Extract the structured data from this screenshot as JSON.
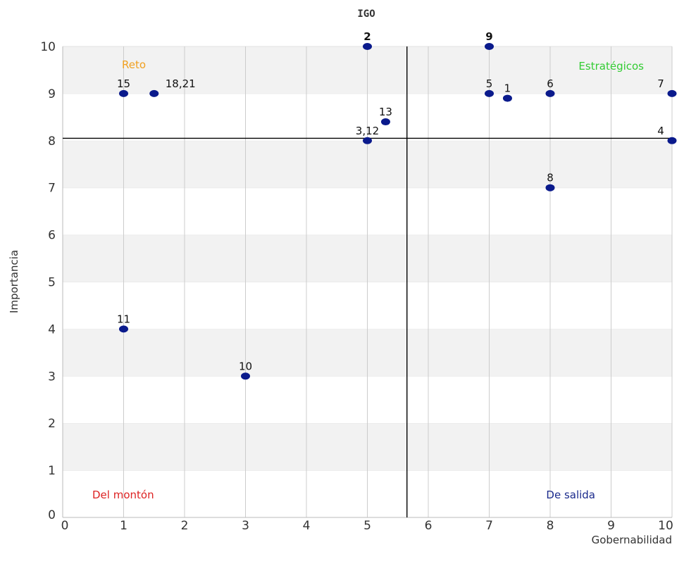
{
  "chart_data": {
    "type": "scatter",
    "title": "IGO",
    "xlabel": "Gobernabilidad",
    "ylabel": "Importancia",
    "xlim": [
      0,
      10
    ],
    "ylim": [
      0,
      10
    ],
    "x_ticks": [
      "0",
      "1",
      "2",
      "3",
      "4",
      "5",
      "6",
      "7",
      "8",
      "9",
      "10"
    ],
    "y_ticks": [
      "0",
      "1",
      "2",
      "3",
      "4",
      "5",
      "6",
      "7",
      "8",
      "9",
      "10"
    ],
    "grid": true,
    "reference_lines": {
      "x": 5.65,
      "y": 8.05
    },
    "marker_color": "#0a1a8c",
    "quadrant_labels": [
      {
        "text": "Reto",
        "quadrant": "top-left",
        "color": "#f0a020"
      },
      {
        "text": "Estratégicos",
        "quadrant": "top-right",
        "color": "#33cc33"
      },
      {
        "text": "Del montón",
        "quadrant": "bottom-left",
        "color": "#dd2222"
      },
      {
        "text": "De salida",
        "quadrant": "bottom-right",
        "color": "#1a2a8c"
      }
    ],
    "points": [
      {
        "label": "2",
        "x": 5,
        "y": 10
      },
      {
        "label": "9",
        "x": 7,
        "y": 10
      },
      {
        "label": "15",
        "x": 1,
        "y": 9
      },
      {
        "label": "18,21",
        "x": 1.5,
        "y": 9
      },
      {
        "label": "5",
        "x": 7,
        "y": 9
      },
      {
        "label": "1",
        "x": 7.3,
        "y": 8.9
      },
      {
        "label": "6",
        "x": 8,
        "y": 9
      },
      {
        "label": "7",
        "x": 10,
        "y": 9
      },
      {
        "label": "13",
        "x": 5.3,
        "y": 8.4
      },
      {
        "label": "3,12",
        "x": 5,
        "y": 8
      },
      {
        "label": "4",
        "x": 10,
        "y": 8
      },
      {
        "label": "8",
        "x": 8,
        "y": 7
      },
      {
        "label": "11",
        "x": 1,
        "y": 4
      },
      {
        "label": "10",
        "x": 3,
        "y": 3
      }
    ]
  }
}
